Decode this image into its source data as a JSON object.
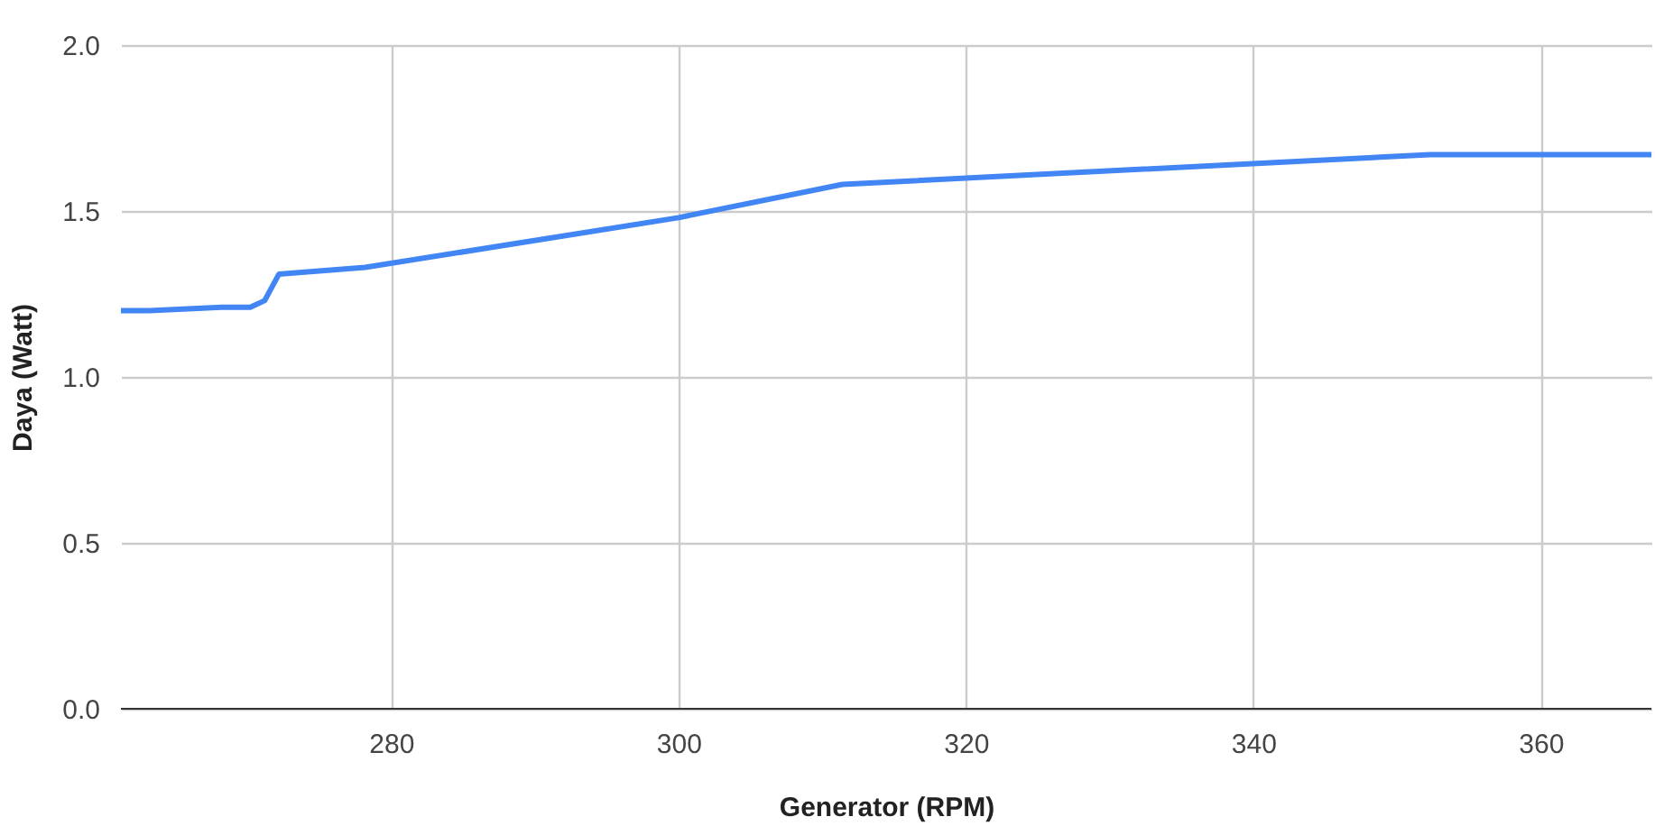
{
  "chart_data": {
    "type": "line",
    "xlabel": "Generator (RPM)",
    "ylabel": "Daya (Watt)",
    "series": [
      {
        "color": "#4285f4",
        "x": [
          261.2,
          263.2,
          268.2,
          270.2,
          271.2,
          272.2,
          278.2,
          300,
          311.4,
          352.3,
          367.7
        ],
        "values": [
          1.2,
          1.2,
          1.21,
          1.21,
          1.23,
          1.31,
          1.33,
          1.48,
          1.58,
          1.67,
          1.67
        ]
      }
    ],
    "xlim": [
      261.2,
      367.7
    ],
    "xticks": [
      280,
      300,
      320,
      340,
      360
    ],
    "ylim": [
      0,
      2
    ],
    "yticks": [
      {
        "value": 0,
        "label": "0.0"
      },
      {
        "value": 0.5,
        "label": "0.5"
      },
      {
        "value": 1,
        "label": "1.0"
      },
      {
        "value": 1.5,
        "label": "1.5"
      },
      {
        "value": 2,
        "label": "2.0"
      }
    ],
    "grid": true,
    "legend": false,
    "marker": "none",
    "line_style": "solid"
  }
}
